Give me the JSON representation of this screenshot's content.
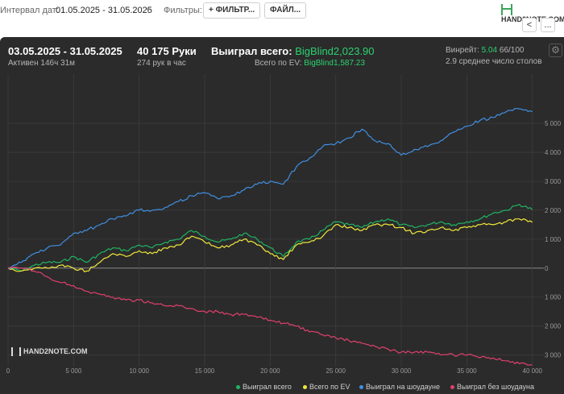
{
  "toolbar": {
    "interval_label": "Интервал дат:",
    "date_range": "01.05.2025 - 31.05.2025",
    "filters_label": "Фильтры:",
    "filter_button": "+ ФИЛЬТР...",
    "file_button": "ФАЙЛ..."
  },
  "logo": {
    "text": "HAND2NOTE.COM"
  },
  "nav": {
    "back": "<",
    "more": "..."
  },
  "summary": {
    "period": "03.05.2025 - 31.05.2025",
    "active": "Активен 146ч 31м",
    "hands": "40 175 Руки",
    "hands_per_hour": "274 рук в час",
    "won_total_label": "Выиграл всего:",
    "won_total_value": "BigBlind2,023.90",
    "ev_label": "Всего по EV:",
    "ev_value": "BigBlind1,587.23",
    "winrate_label": "Винрейт:",
    "winrate_value": "5.04",
    "winrate_sample": "66/100",
    "avg_tables": "2.9 среднее число столов"
  },
  "watermark": "HAND2NOTE.COM",
  "colors": {
    "won_total": "#1fb463",
    "ev": "#f0e83a",
    "showdown": "#3f8fe0",
    "non_showdown": "#e0406e",
    "background": "#2b2b2b",
    "grid": "#3d3d3d"
  },
  "chart_data": {
    "type": "line",
    "x_ticks": [
      0,
      5000,
      10000,
      15000,
      20000,
      25000,
      30000,
      35000,
      40000
    ],
    "x_tick_labels": [
      "0",
      "5 000",
      "10 000",
      "15 000",
      "20 000",
      "25 000",
      "30 000",
      "35 000",
      "40 000"
    ],
    "y_ticks": [
      -3000,
      -2000,
      -1000,
      0,
      1000,
      2000,
      3000,
      4000,
      5000
    ],
    "y_tick_labels": [
      "3 000",
      "2 000",
      "1 000",
      "0",
      "1 000",
      "2 000",
      "3 000",
      "4 000",
      "5 000"
    ],
    "xlim": [
      0,
      40200
    ],
    "ylim": [
      -3400,
      6700
    ],
    "grid": true,
    "legend_position": "bottom-right",
    "series": [
      {
        "name": "Выиграл всего",
        "color": "#1fb463",
        "x": [
          0,
          1000,
          2000,
          3000,
          4000,
          5000,
          6000,
          7000,
          8000,
          9000,
          10000,
          11000,
          12000,
          13000,
          14000,
          15000,
          16000,
          17000,
          18000,
          19000,
          20000,
          21000,
          22000,
          23000,
          24000,
          25000,
          26000,
          27000,
          28000,
          29000,
          30000,
          31000,
          32000,
          33000,
          34000,
          35000,
          36000,
          37000,
          38000,
          39000,
          40000
        ],
        "y": [
          0,
          -100,
          100,
          200,
          200,
          400,
          200,
          500,
          700,
          600,
          800,
          700,
          900,
          1000,
          1300,
          1100,
          900,
          1000,
          1200,
          1000,
          700,
          400,
          900,
          1000,
          1300,
          1600,
          1500,
          1400,
          1600,
          1700,
          1500,
          1400,
          1500,
          1600,
          1500,
          1600,
          1700,
          1900,
          2000,
          2200,
          2024
        ]
      },
      {
        "name": "Всего по EV",
        "color": "#f0e83a",
        "x": [
          0,
          1000,
          2000,
          3000,
          4000,
          5000,
          6000,
          7000,
          8000,
          9000,
          10000,
          11000,
          12000,
          13000,
          14000,
          15000,
          16000,
          17000,
          18000,
          19000,
          20000,
          21000,
          22000,
          23000,
          24000,
          25000,
          26000,
          27000,
          28000,
          29000,
          30000,
          31000,
          32000,
          33000,
          34000,
          35000,
          36000,
          37000,
          38000,
          39000,
          40000
        ],
        "y": [
          0,
          -100,
          0,
          0,
          100,
          0,
          -100,
          200,
          500,
          400,
          600,
          500,
          700,
          800,
          1100,
          900,
          700,
          800,
          1000,
          800,
          500,
          300,
          800,
          900,
          1100,
          1500,
          1400,
          1300,
          1500,
          1500,
          1400,
          1200,
          1300,
          1400,
          1300,
          1400,
          1500,
          1500,
          1600,
          1700,
          1587
        ]
      },
      {
        "name": "Выиграл на шоудауне",
        "color": "#3f8fe0",
        "x": [
          0,
          1000,
          2000,
          3000,
          4000,
          5000,
          6000,
          7000,
          8000,
          9000,
          10000,
          11000,
          12000,
          13000,
          14000,
          15000,
          16000,
          17000,
          18000,
          19000,
          20000,
          21000,
          22000,
          23000,
          24000,
          25000,
          26000,
          27000,
          28000,
          29000,
          30000,
          31000,
          32000,
          33000,
          34000,
          35000,
          36000,
          37000,
          38000,
          39000,
          40000
        ],
        "y": [
          0,
          200,
          500,
          700,
          800,
          1200,
          1300,
          1500,
          1700,
          1800,
          2000,
          2000,
          2100,
          2300,
          2500,
          2600,
          2400,
          2500,
          2700,
          2900,
          3000,
          2900,
          3500,
          3800,
          4200,
          4300,
          4500,
          4800,
          4400,
          4300,
          3900,
          4100,
          4200,
          4400,
          4700,
          4900,
          5100,
          5200,
          5400,
          5500,
          5400
        ]
      },
      {
        "name": "Выиграл без шоудауна",
        "color": "#e0406e",
        "x": [
          0,
          1000,
          2000,
          3000,
          4000,
          5000,
          6000,
          7000,
          8000,
          9000,
          10000,
          11000,
          12000,
          13000,
          14000,
          15000,
          16000,
          17000,
          18000,
          19000,
          20000,
          21000,
          22000,
          23000,
          24000,
          25000,
          26000,
          27000,
          28000,
          29000,
          30000,
          31000,
          32000,
          33000,
          34000,
          35000,
          36000,
          37000,
          38000,
          39000,
          40000
        ],
        "y": [
          0,
          0,
          -100,
          -300,
          -500,
          -600,
          -800,
          -900,
          -1000,
          -1100,
          -1100,
          -1200,
          -1300,
          -1300,
          -1400,
          -1500,
          -1500,
          -1600,
          -1600,
          -1700,
          -1800,
          -1900,
          -2000,
          -2200,
          -2300,
          -2400,
          -2500,
          -2600,
          -2700,
          -2800,
          -2900,
          -2900,
          -2900,
          -3000,
          -3000,
          -3000,
          -3100,
          -3100,
          -3200,
          -3300,
          -3350
        ]
      }
    ]
  }
}
